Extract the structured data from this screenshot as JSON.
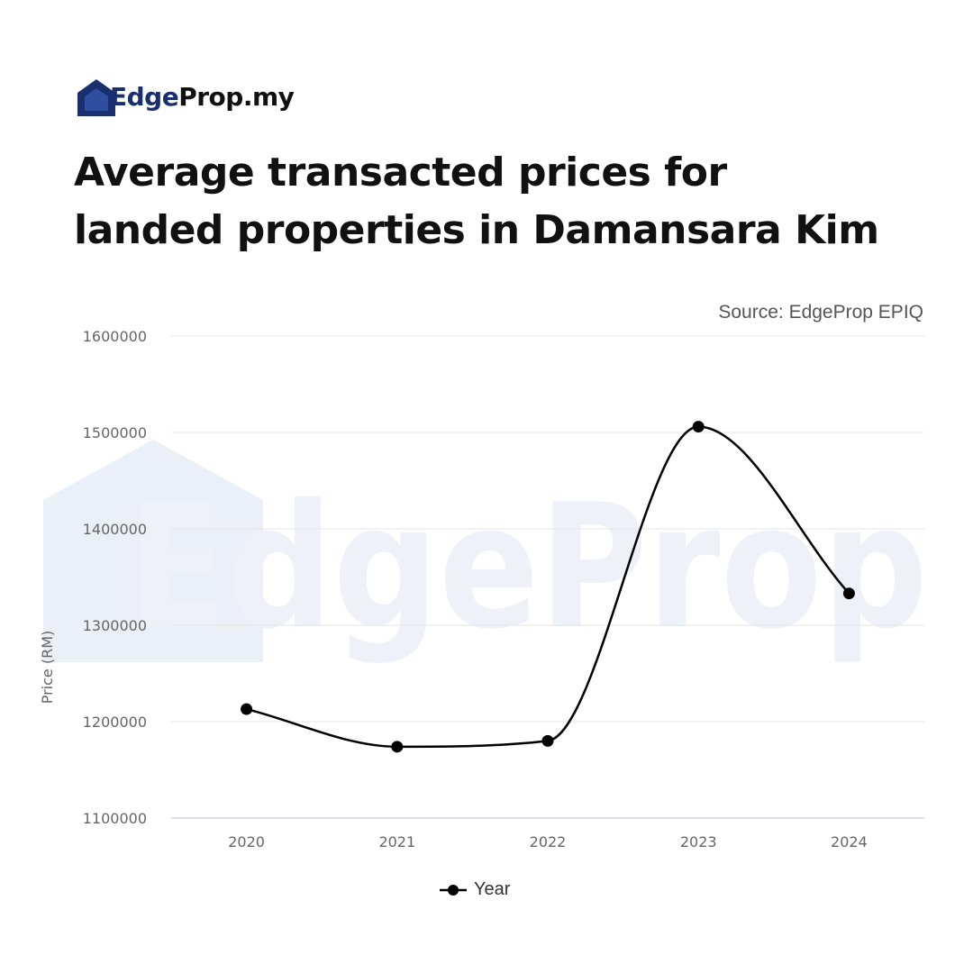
{
  "header": {
    "logo_accent": "Edge",
    "logo_rest": "Prop.my",
    "title_line1": "Average transacted prices for",
    "title_line2": "landed properties in Damansara Kim"
  },
  "source": "Source: EdgeProp EPIQ",
  "watermark": "EdgeProp",
  "colors": {
    "brand": "#1a2f6e",
    "line": "#000000",
    "grid": "#e6e6e6",
    "axis": "#ccd6eb"
  },
  "chart_data": {
    "type": "line",
    "title": "",
    "xlabel": "",
    "ylabel": "Price (RM)",
    "x": [
      "2020",
      "2021",
      "2022",
      "2023",
      "2024"
    ],
    "series": [
      {
        "name": "Year",
        "values": [
          1213000,
          1174000,
          1180000,
          1506000,
          1333000
        ]
      }
    ],
    "y_ticks": [
      "1100000",
      "1200000",
      "1300000",
      "1400000",
      "1500000",
      "1600000"
    ],
    "ylim": [
      1100000,
      1600000
    ],
    "grid": true,
    "legend": "bottom-center",
    "smooth": true
  }
}
